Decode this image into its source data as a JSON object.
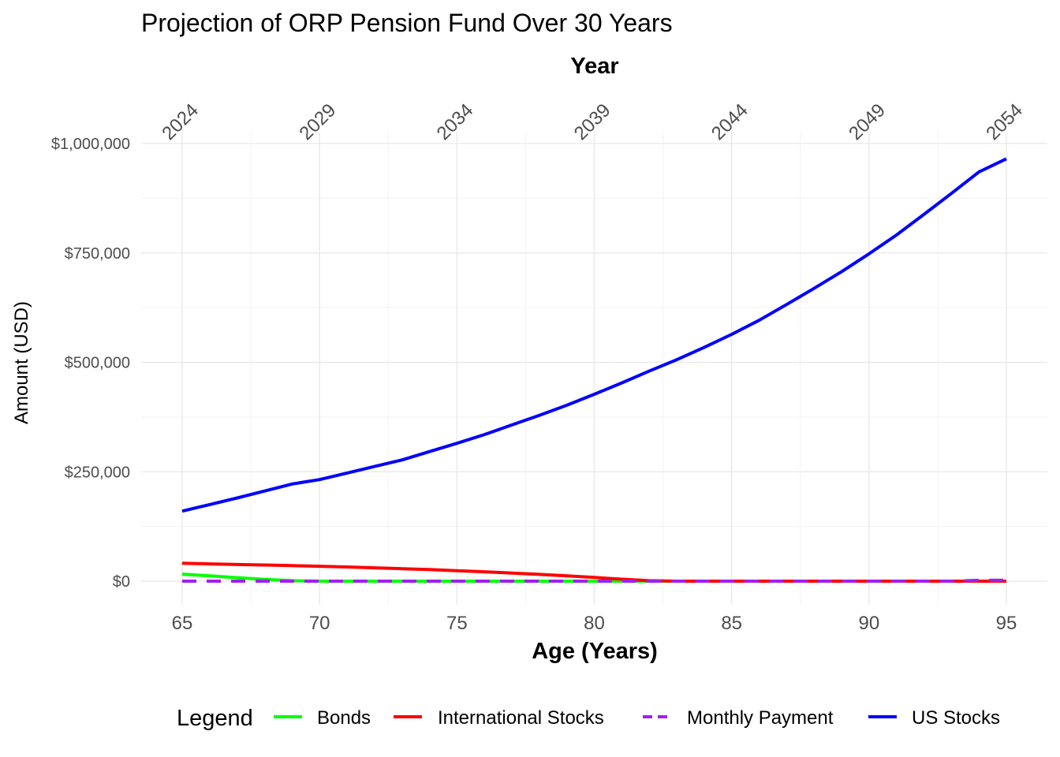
{
  "chart_data": {
    "type": "line",
    "title": "Projection of ORP Pension Fund Over 30 Years",
    "xlabel": "Age (Years)",
    "ylabel": "Amount (USD)",
    "secondary_xlabel": "Year",
    "xlim": [
      65,
      95
    ],
    "ylim": [
      0,
      1000000
    ],
    "x_ticks": [
      65,
      70,
      75,
      80,
      85,
      90,
      95
    ],
    "x_tick_labels": [
      "65",
      "70",
      "75",
      "80",
      "85",
      "90",
      "95"
    ],
    "y_ticks": [
      0,
      250000,
      500000,
      750000,
      1000000
    ],
    "y_tick_labels": [
      "$0",
      "$250,000",
      "$500,000",
      "$750,000",
      "$1,000,000"
    ],
    "secondary_x_ticks": [
      65,
      70,
      75,
      80,
      85,
      90,
      95
    ],
    "secondary_x_tick_labels": [
      "2024",
      "2029",
      "2034",
      "2039",
      "2044",
      "2049",
      "2054"
    ],
    "grid": true,
    "legend": {
      "title": "Legend",
      "position": "bottom"
    },
    "x": [
      65,
      66,
      67,
      68,
      69,
      70,
      71,
      72,
      73,
      74,
      75,
      76,
      77,
      78,
      79,
      80,
      81,
      82,
      83,
      84,
      85,
      86,
      87,
      88,
      89,
      90,
      91,
      92,
      93,
      94,
      95
    ],
    "series": [
      {
        "name": "Bonds",
        "color": "#00ff00",
        "dash": "solid",
        "values": [
          16000,
          12000,
          8000,
          4000,
          1000,
          0,
          0,
          0,
          0,
          0,
          0,
          0,
          0,
          0,
          0,
          0,
          0,
          0,
          0,
          0,
          0,
          0,
          0,
          0,
          0,
          0,
          0,
          0,
          0,
          0,
          0
        ]
      },
      {
        "name": "International Stocks",
        "color": "#ff0000",
        "dash": "solid",
        "values": [
          41000,
          39500,
          38000,
          37000,
          35500,
          34000,
          32500,
          30500,
          28500,
          26500,
          24000,
          21500,
          18500,
          15500,
          12000,
          8500,
          4500,
          1000,
          0,
          0,
          0,
          0,
          0,
          0,
          0,
          0,
          0,
          0,
          0,
          0,
          0
        ]
      },
      {
        "name": "Monthly Payment",
        "color": "#a020f0",
        "dash": "dashed",
        "values": [
          0,
          0,
          0,
          0,
          0,
          0,
          0,
          0,
          0,
          0,
          0,
          0,
          0,
          0,
          0,
          0,
          0,
          0,
          0,
          0,
          0,
          0,
          0,
          0,
          0,
          0,
          0,
          0,
          0,
          2000,
          2000
        ]
      },
      {
        "name": "US Stocks",
        "color": "#0000ff",
        "dash": "solid",
        "values": [
          160000,
          175000,
          190000,
          206000,
          222000,
          232000,
          247000,
          262000,
          277000,
          296000,
          315000,
          335000,
          357000,
          379000,
          402000,
          427000,
          453000,
          480000,
          506000,
          534000,
          564000,
          596000,
          632000,
          669000,
          707000,
          748000,
          791000,
          838000,
          886000,
          935000,
          965000
        ]
      }
    ]
  }
}
